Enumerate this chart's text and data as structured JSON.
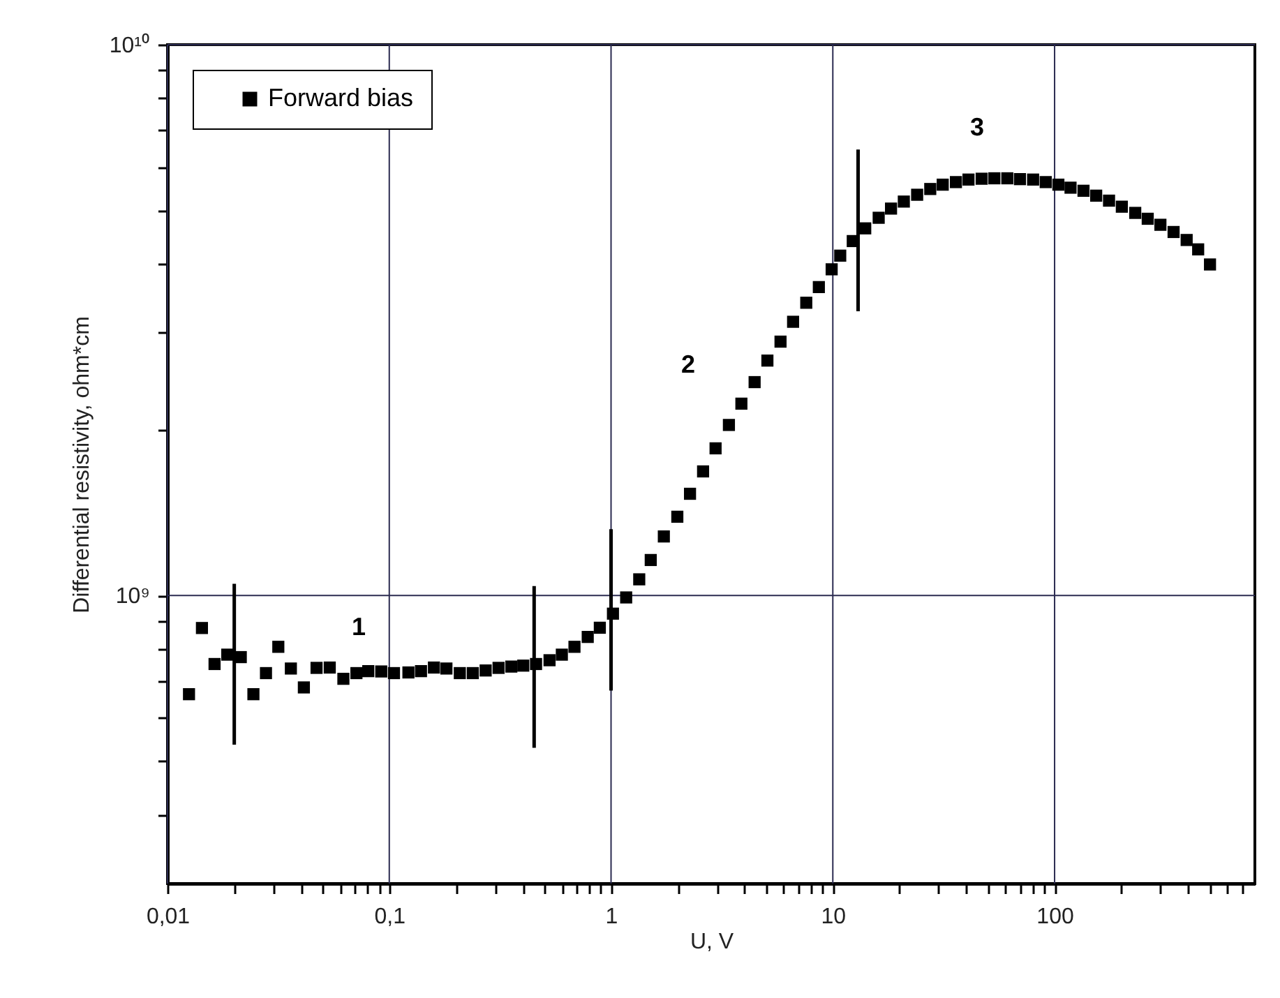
{
  "chart_data": {
    "type": "scatter",
    "xlabel": "U, V",
    "ylabel": "Differential resistivity, ohm*cm",
    "log": "xy",
    "grid": true,
    "legend": "top left",
    "marker": "square",
    "xlim": [
      0.01,
      800
    ],
    "ylim": [
      300000000.0,
      10000000000.0
    ],
    "xticks": [
      {
        "value": 0.01,
        "label": "0,01"
      },
      {
        "value": 0.02,
        "label": null
      },
      {
        "value": 0.03,
        "label": null
      },
      {
        "value": 0.04,
        "label": null
      },
      {
        "value": 0.05,
        "label": null
      },
      {
        "value": 0.06,
        "label": null
      },
      {
        "value": 0.07,
        "label": null
      },
      {
        "value": 0.08,
        "label": null
      },
      {
        "value": 0.09,
        "label": null
      },
      {
        "value": 0.1,
        "label": "0,1"
      },
      {
        "value": 0.2,
        "label": null
      },
      {
        "value": 0.3,
        "label": null
      },
      {
        "value": 0.4,
        "label": null
      },
      {
        "value": 0.5,
        "label": null
      },
      {
        "value": 0.6,
        "label": null
      },
      {
        "value": 0.7,
        "label": null
      },
      {
        "value": 0.8,
        "label": null
      },
      {
        "value": 0.9,
        "label": null
      },
      1,
      {
        "value": 2,
        "label": null
      },
      {
        "value": 3,
        "label": null
      },
      {
        "value": 4,
        "label": null
      },
      {
        "value": 5,
        "label": null
      },
      {
        "value": 6,
        "label": null
      },
      {
        "value": 7,
        "label": null
      },
      {
        "value": 8,
        "label": null
      },
      {
        "value": 9,
        "label": null
      },
      10,
      {
        "value": 20,
        "label": null
      },
      {
        "value": 30,
        "label": null
      },
      {
        "value": 40,
        "label": null
      },
      {
        "value": 50,
        "label": null
      },
      {
        "value": 60,
        "label": null
      },
      {
        "value": 70,
        "label": null
      },
      {
        "value": 80,
        "label": null
      },
      {
        "value": 90,
        "label": null
      },
      100,
      {
        "value": 200,
        "label": null
      },
      {
        "value": 300,
        "label": null
      },
      {
        "value": 400,
        "label": null
      },
      {
        "value": 500,
        "label": null
      },
      {
        "value": 600,
        "label": null
      },
      {
        "value": 700,
        "label": null
      }
    ],
    "yticks": [
      {
        "value": 400000000.0,
        "label": null
      },
      {
        "value": 500000000.0,
        "label": null
      },
      {
        "value": 600000000.0,
        "label": null
      },
      {
        "value": 700000000.0,
        "label": null
      },
      {
        "value": 800000000.0,
        "label": null
      },
      {
        "value": 900000000.0,
        "label": null
      },
      {
        "value": 1000000000.0,
        "label": "10⁹"
      },
      {
        "value": 2000000000.0,
        "label": null
      },
      {
        "value": 3000000000.0,
        "label": null
      },
      {
        "value": 4000000000.0,
        "label": null
      },
      {
        "value": 5000000000.0,
        "label": null
      },
      {
        "value": 6000000000.0,
        "label": null
      },
      {
        "value": 7000000000.0,
        "label": null
      },
      {
        "value": 8000000000.0,
        "label": null
      },
      {
        "value": 9000000000.0,
        "label": null
      },
      {
        "value": 10000000000.0,
        "label": "10¹⁰"
      }
    ],
    "series": [
      {
        "name": "Forward bias",
        "color": "#000000",
        "x": [
          0.0125,
          0.0143,
          0.0163,
          0.0186,
          0.0214,
          0.0244,
          0.0278,
          0.0316,
          0.036,
          0.0412,
          0.047,
          0.0539,
          0.0621,
          0.0711,
          0.0804,
          0.092,
          0.105,
          0.122,
          0.139,
          0.159,
          0.181,
          0.208,
          0.238,
          0.272,
          0.311,
          0.355,
          0.402,
          0.459,
          0.528,
          0.6,
          0.684,
          0.785,
          0.89,
          1.02,
          1.17,
          1.34,
          1.51,
          1.73,
          1.99,
          2.27,
          2.6,
          2.96,
          3.4,
          3.87,
          4.44,
          5.07,
          5.81,
          6.62,
          7.59,
          8.65,
          9.88,
          10.8,
          12.3,
          14,
          16.1,
          18.3,
          20.9,
          24,
          27.5,
          31.3,
          35.9,
          40.9,
          46.9,
          53.5,
          61.2,
          69.8,
          80,
          91.2,
          104,
          118,
          135,
          154,
          176,
          201,
          231,
          263,
          300,
          344,
          394,
          444,
          502
        ],
        "values": [
          662000000.0,
          873000000.0,
          751000000.0,
          781000000.0,
          773000000.0,
          662000000.0,
          723000000.0,
          807000000.0,
          737000000.0,
          681000000.0,
          739000000.0,
          740000000.0,
          706000000.0,
          723000000.0,
          729000000.0,
          728000000.0,
          723000000.0,
          725000000.0,
          729000000.0,
          740000000.0,
          737000000.0,
          723000000.0,
          723000000.0,
          731000000.0,
          739000000.0,
          743000000.0,
          746000000.0,
          751000000.0,
          763000000.0,
          781000000.0,
          807000000.0,
          841000000.0,
          874000000.0,
          927000000.0,
          992000000.0,
          1070000000.0,
          1160000000.0,
          1280000000.0,
          1390000000.0,
          1530000000.0,
          1680000000.0,
          1850000000.0,
          2040000000.0,
          2230000000.0,
          2440000000.0,
          2670000000.0,
          2890000000.0,
          3140000000.0,
          3400000000.0,
          3630000000.0,
          3910000000.0,
          4140000000.0,
          4400000000.0,
          4640000000.0,
          4850000000.0,
          5040000000.0,
          5190000000.0,
          5340000000.0,
          5470000000.0,
          5570000000.0,
          5630000000.0,
          5690000000.0,
          5710000000.0,
          5720000000.0,
          5720000000.0,
          5700000000.0,
          5690000000.0,
          5630000000.0,
          5570000000.0,
          5500000000.0,
          5430000000.0,
          5320000000.0,
          5210000000.0,
          5080000000.0,
          4950000000.0,
          4830000000.0,
          4710000000.0,
          4570000000.0,
          4420000000.0,
          4250000000.0,
          3990000000.0
        ]
      },
      {
        "type": "line",
        "marker": "none",
        "color": "#000000",
        "x": [
          0.02,
          0.02
        ],
        "values": [
          536000000.0,
          1050000000.0
        ]
      },
      {
        "type": "line",
        "marker": "none",
        "color": "#000000",
        "x": [
          0.45,
          0.45
        ],
        "values": [
          529000000.0,
          1040000000.0
        ]
      },
      {
        "type": "line",
        "marker": "none",
        "color": "#000000",
        "x": [
          1,
          1
        ],
        "values": [
          672000000.0,
          1320000000.0
        ]
      },
      {
        "type": "line",
        "marker": "none",
        "color": "#000000",
        "x": [
          13,
          13
        ],
        "values": [
          3280000000.0,
          6450000000.0
        ]
      }
    ],
    "annotations": [
      "1",
      "2",
      "3"
    ]
  }
}
